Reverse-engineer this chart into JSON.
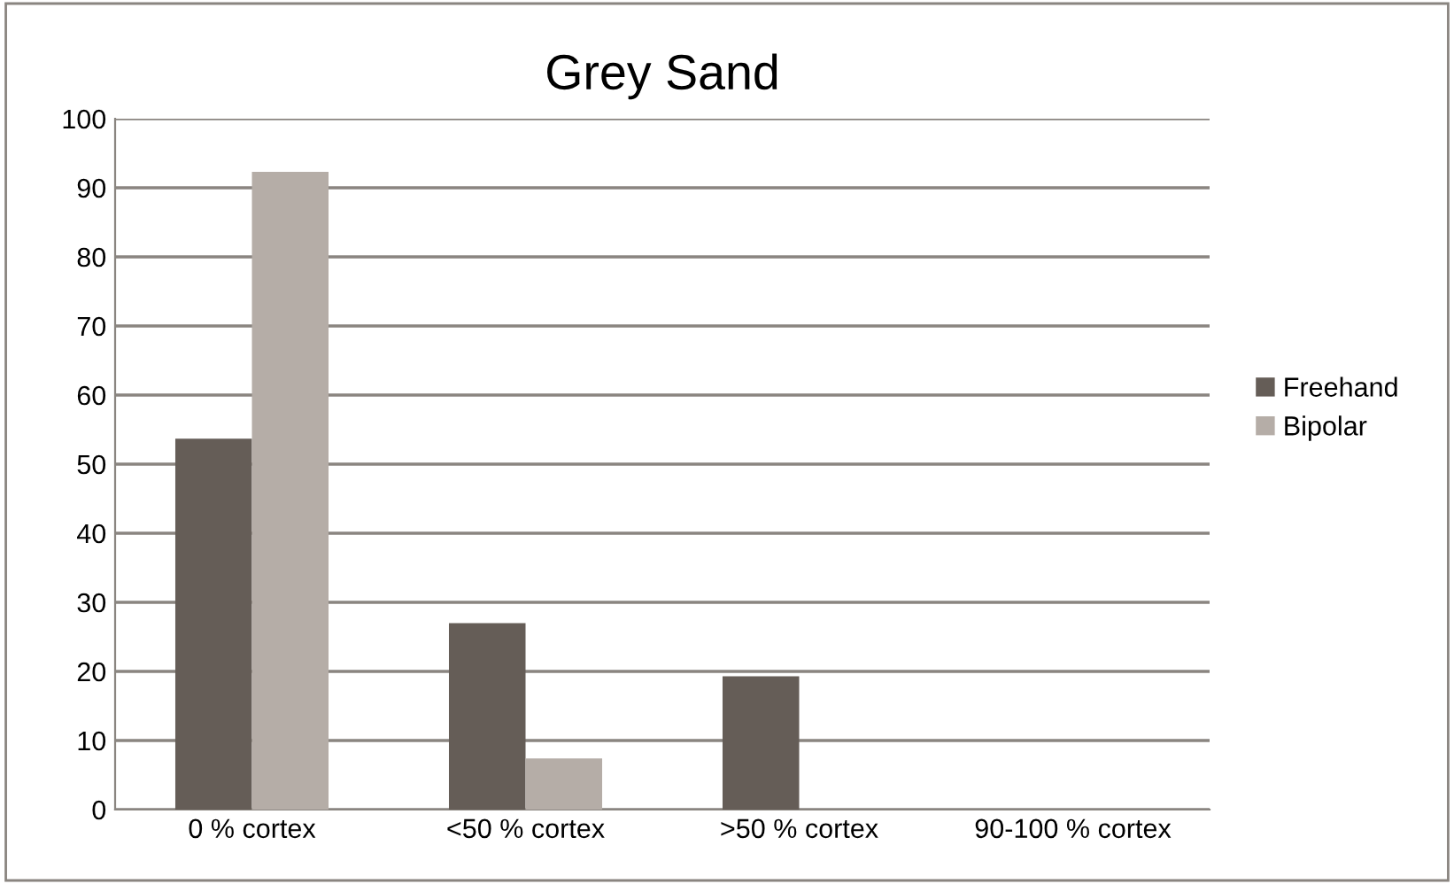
{
  "chart_data": {
    "type": "bar",
    "title": "Grey Sand",
    "categories": [
      "0 % cortex",
      "<50 % cortex",
      ">50 % cortex",
      "90-100 % cortex"
    ],
    "series": [
      {
        "name": "Freehand",
        "color": "#655d57",
        "values": [
          53.7,
          27.0,
          19.3,
          null
        ]
      },
      {
        "name": "Bipolar",
        "color": "#b5ada7",
        "values": [
          92.3,
          7.4,
          null,
          null
        ]
      }
    ],
    "ylim": [
      0,
      100
    ],
    "yticks": [
      0,
      10,
      20,
      30,
      40,
      50,
      60,
      70,
      80,
      90,
      100
    ],
    "grid": "y",
    "legend": "right"
  }
}
